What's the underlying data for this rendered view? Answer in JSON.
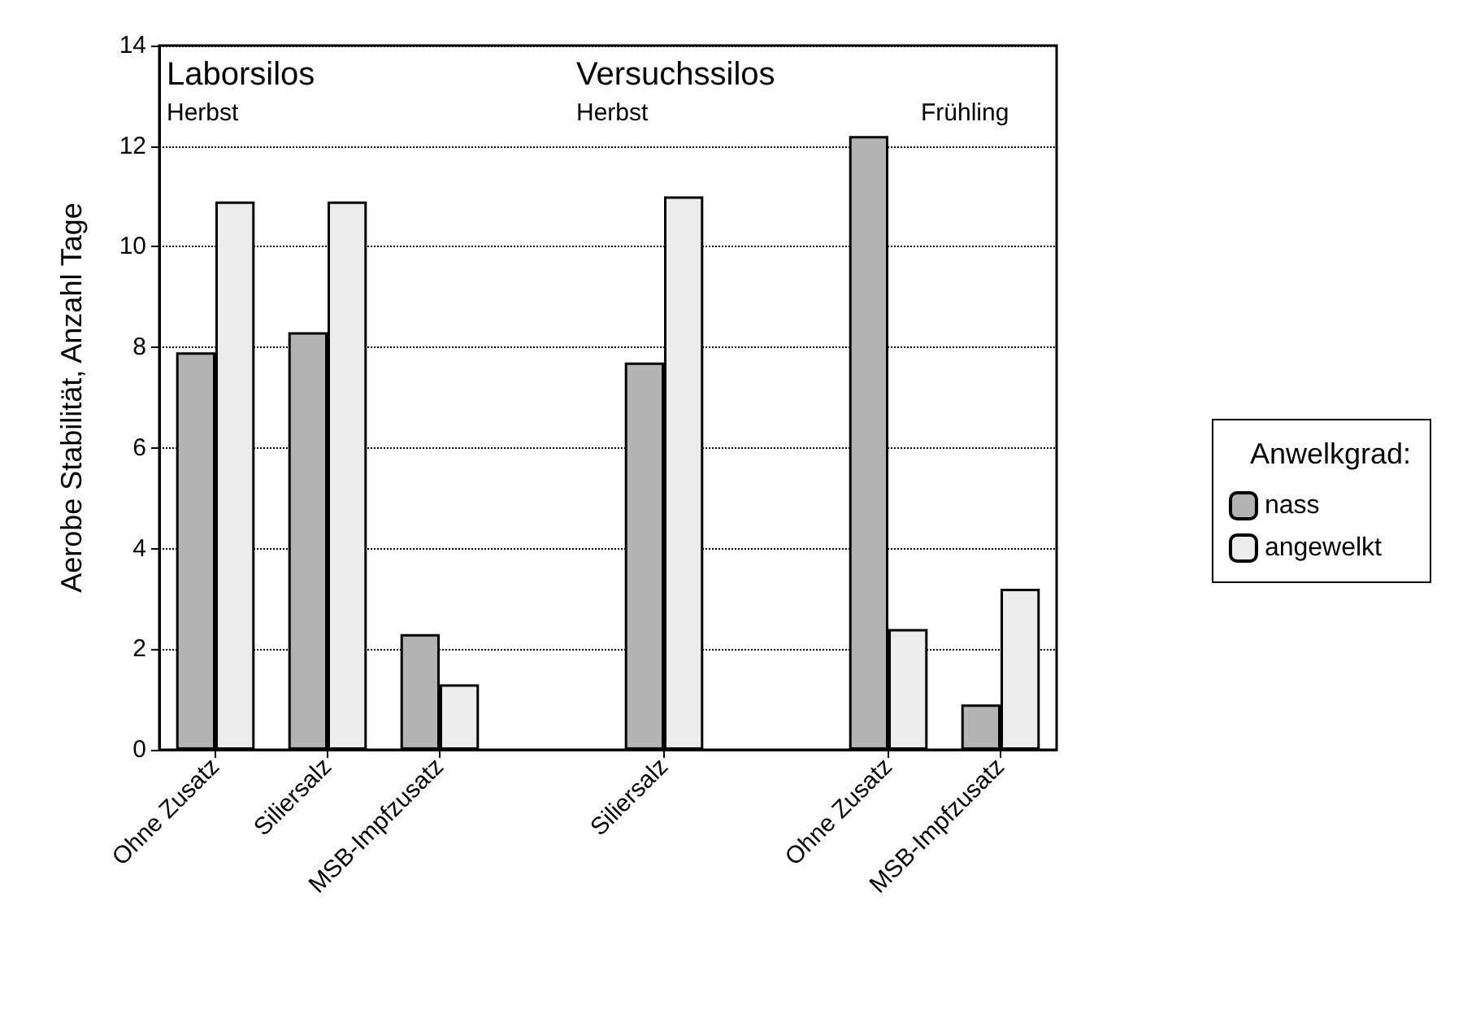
{
  "chart_data": {
    "type": "bar",
    "ylabel": "Aerobe Stabilität, Anzahl Tage",
    "legend_title": "Anwelkgrad:",
    "categories": [
      "Ohne Zusatz",
      "Siliersalz",
      "MSB-Impfzusatz",
      null,
      "Siliersalz",
      null,
      "Ohne Zusatz",
      "MSB-Impfzusatz"
    ],
    "series": [
      {
        "name": "nass",
        "color": "#b3b3b3",
        "values": [
          7.9,
          8.3,
          2.3,
          null,
          7.7,
          null,
          12.2,
          0.9
        ]
      },
      {
        "name": "angewelkt",
        "color": "#ececec",
        "values": [
          10.9,
          10.9,
          1.3,
          null,
          11.0,
          null,
          2.4,
          3.2
        ]
      }
    ],
    "ylim": [
      0,
      14
    ],
    "yticks": [
      0,
      2,
      4,
      6,
      8,
      10,
      12,
      14
    ],
    "grid": "y",
    "legend": "right",
    "annotations": [
      "Laborsilos",
      "Herbst",
      "Versuchssilos",
      "Herbst",
      "Frühling"
    ]
  }
}
